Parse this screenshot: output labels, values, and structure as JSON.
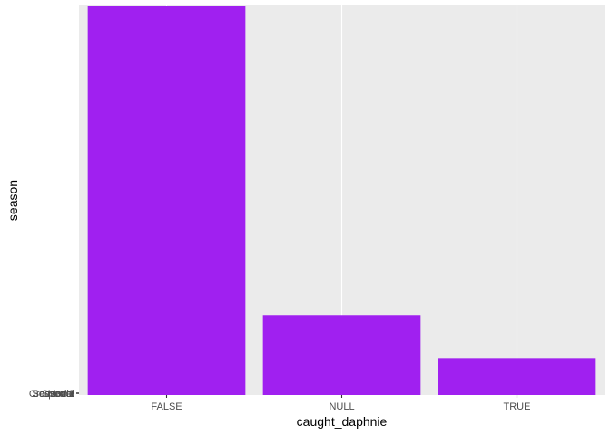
{
  "chart_data": {
    "type": "bar",
    "xlabel": "caught_daphnie",
    "ylabel": "season",
    "categories": [
      "FALSE",
      "NULL",
      "TRUE"
    ],
    "values": [
      100,
      20.5,
      9.5
    ],
    "y_tick_labels": [
      "Crossover",
      "Movie",
      "Season 1",
      "Season 2",
      "Season 3",
      "Special"
    ],
    "bar_color": "#A020F0",
    "panel_color": "#EBEBEB",
    "grid_color": "#FFFFFF",
    "grid": true,
    "legend": "none"
  }
}
